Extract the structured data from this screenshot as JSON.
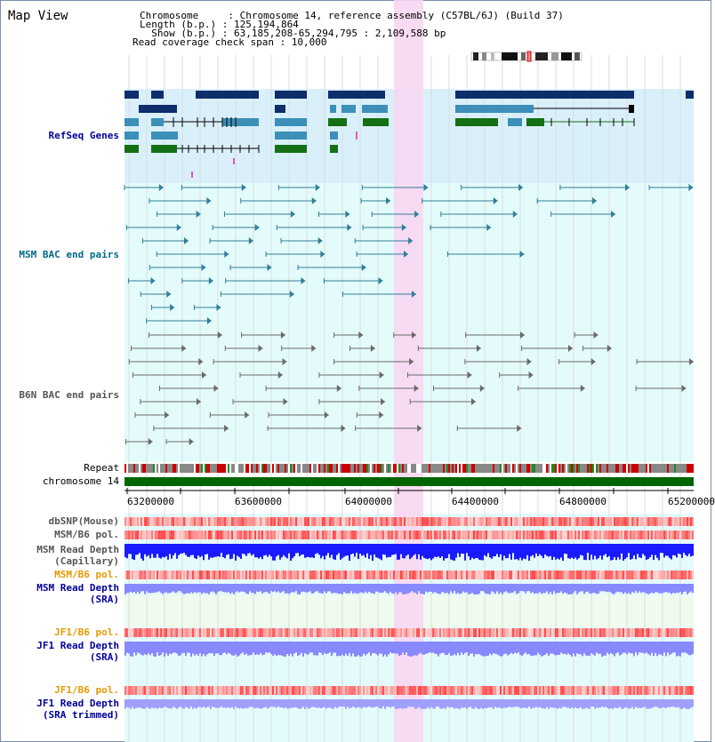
{
  "title": "Map View",
  "header": {
    "chromosome": "Chromosome     : Chromosome 14, reference assembly (C57BL/6J) (Build 37)",
    "length": "Length (b.p.) : 125,194,864",
    "show": "  Show (b.p.) : 63,185,208-65,294,795 : 2,109,588 bp",
    "coverage": "Read coverage check span : 10,000"
  },
  "tracks": {
    "refseq": "RefSeq Genes",
    "msm_bac": "MSM BAC end pairs",
    "b6n_bac": "B6N BAC end pairs",
    "repeat": "Repeat",
    "chromosome": "chromosome 14",
    "dbsnp": "dbSNP(Mouse)",
    "msm_b6_pol_1": "MSM/B6 pol.",
    "msm_depth_cap_1": "MSM Read Depth",
    "msm_depth_cap_2": "(Capillary)",
    "msm_b6_pol_2": "MSM/B6 pol.",
    "msm_depth_sra_1": "MSM Read Depth",
    "msm_depth_sra_2": "(SRA)",
    "jf1_b6_pol_1": "JF1/B6 pol.",
    "jf1_depth_sra_1": "JF1 Read Depth",
    "jf1_depth_sra_2": "(SRA)",
    "jf1_b6_pol_2": "JF1/B6 pol.",
    "jf1_depth_trim_1": "JF1 Read Depth",
    "jf1_depth_trim_2": "(SRA trimmed)"
  },
  "axis_ticks": [
    "63200000",
    "63600000",
    "64000000",
    "64400000",
    "64800000",
    "65200000"
  ],
  "colors": {
    "refseq_bg": "#d9f0fb",
    "lower_bg": "#e4fbfb",
    "highlight": "#f7d7f2",
    "chromosome_bar": "#006400",
    "refseq_dark": "#0d2d6b",
    "refseq_mid": "#3c8fb8",
    "refseq_green": "#157015",
    "msm_pair": "#2f7f9a",
    "b6n_pair": "#6a6a6a",
    "depth_blue": "#1a1aff",
    "depth_light": "#8888ff",
    "label_dark_blue": "#000099",
    "label_teal": "#006a8a",
    "label_gray": "#555555",
    "label_orange": "#e69900"
  }
}
